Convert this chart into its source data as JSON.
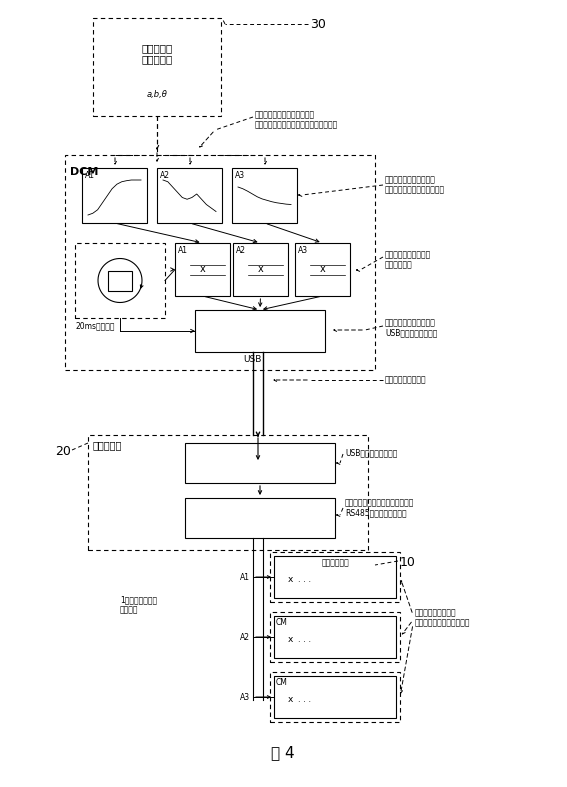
{
  "bg_color": "#ffffff",
  "fig_title": "図 4",
  "annot_1": "位付のあるコマンドを介した\n複数のアクチュエータへの同時コマンド",
  "annot_2": "各アクチュエータ上での\n時間経過に伴う傾向のメモリ",
  "annot_3": "アクチュエータごとの\n補間値の計算",
  "annot_4": "あらゆるコマンドによる\nUSBリクエストの作成",
  "annot_5": "胴部カードへの伝達",
  "annot_6": "USBプロトコルの除去",
  "annot_7": "ブロードキャストリクエスト時の\nRS485プロトコルの追加",
  "annot_8": "各カードでの受信と\n先行する命令に対する待期",
  "label_broadcast": "1ブロードケース\nフレーム",
  "label_usb": "USB",
  "label_30": "30",
  "label_20": "20",
  "label_10": "10",
  "text_upper": "上位レベル\nモジュール",
  "text_upper_sub": "a,b,θ",
  "text_dcm": "DCM",
  "text_20ms": "20msサイクル",
  "text_kyobu": "胴部カード",
  "text_motorcard": "モータカード"
}
